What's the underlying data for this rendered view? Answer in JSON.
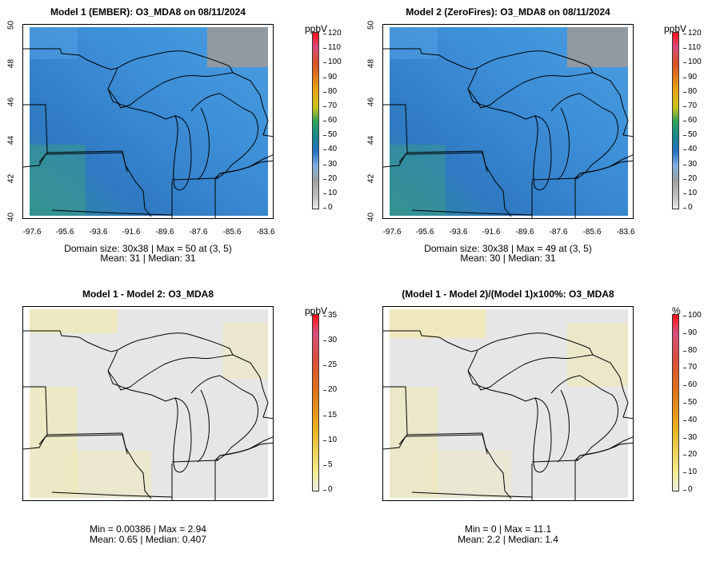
{
  "colors": {
    "map_blue": "#3f8fd4",
    "map_blue_dark": "#2c74c4",
    "map_gray": "#9a9a9a",
    "map_teal": "#3a9a8a",
    "diff_gray": "#e6e6e6",
    "diff_yellow": "#efe9b8"
  },
  "panels": [
    {
      "id": "model1",
      "title": "Model 1 (EMBER): O3_MDA8 on 08/11/2024",
      "unit": "ppbV",
      "scale_ticks": [
        "120",
        "110",
        "100",
        "90",
        "80",
        "70",
        "60",
        "50",
        "40",
        "30",
        "20",
        "10",
        "0"
      ],
      "y_ticks": [
        "50",
        "48",
        "46",
        "44",
        "42",
        "40"
      ],
      "x_ticks": [
        "-97.6",
        "-95.6",
        "-93.6",
        "-91.6",
        "-89.6",
        "-87.6",
        "-85.6",
        "-83.6"
      ],
      "stats_line1": "Domain size: 30x38 | Max = 50 at (3, 5)",
      "stats_line2": "Mean: 31 |  Median: 31"
    },
    {
      "id": "model2",
      "title": "Model 2 (ZeroFires): O3_MDA8 on 08/11/2024",
      "unit": "ppbV",
      "scale_ticks": [
        "120",
        "110",
        "100",
        "90",
        "80",
        "70",
        "60",
        "50",
        "40",
        "30",
        "20",
        "10",
        "0"
      ],
      "y_ticks": [
        "50",
        "48",
        "46",
        "44",
        "42",
        "40"
      ],
      "x_ticks": [
        "-97.6",
        "-95.6",
        "-93.6",
        "-91.6",
        "-89.6",
        "-87.6",
        "-85.6",
        "-83.6"
      ],
      "stats_line1": "Domain size: 30x38 | Max = 49 at (3, 5)",
      "stats_line2": "Mean: 30 |  Median: 31"
    },
    {
      "id": "diff",
      "title": "Model 1 - Model 2: O3_MDA8",
      "unit": "ppbV",
      "scale_ticks": [
        "35",
        "30",
        "25",
        "20",
        "15",
        "10",
        "5",
        "0"
      ],
      "stats_line1": "Min = 0.00386 | Max = 2.94",
      "stats_line2": "Mean: 0.65 |  Median: 0.407"
    },
    {
      "id": "pct",
      "title": "(Model 1 - Model 2)/(Model 1)x100%: O3_MDA8",
      "unit": "%",
      "scale_ticks": [
        "100",
        "90",
        "80",
        "70",
        "60",
        "50",
        "40",
        "30",
        "20",
        "10",
        "0"
      ],
      "stats_line1": "Min = 0 | Max = 11.1",
      "stats_line2": "Mean: 2.2 |  Median: 1.4"
    }
  ]
}
